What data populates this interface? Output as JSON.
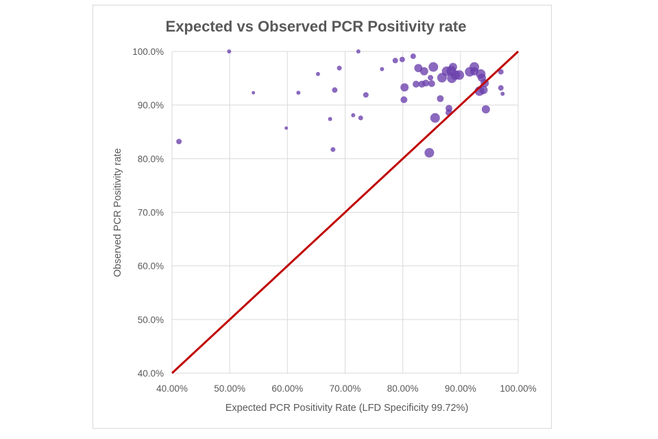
{
  "chart_data": {
    "type": "scatter",
    "title": "Expected vs Observed PCR Positivity rate",
    "xlabel": "Expected PCR Positivity Rate (LFD Specificity 99.72%)",
    "ylabel": "Observed PCR Positivity rate",
    "xlim": [
      40,
      100
    ],
    "ylim": [
      40,
      100
    ],
    "x_ticks": [
      40,
      50,
      60,
      70,
      80,
      90,
      100
    ],
    "x_tick_labels": [
      "40.00%",
      "50.00%",
      "60.00%",
      "70.00%",
      "80.00%",
      "90.00%",
      "100.00%"
    ],
    "y_ticks": [
      40,
      50,
      60,
      70,
      80,
      90,
      100
    ],
    "y_tick_labels": [
      "40.0%",
      "50.0%",
      "60.0%",
      "70.0%",
      "80.0%",
      "90.0%",
      "100.0%"
    ],
    "grid": true,
    "legend": "none",
    "marker_color": "#6a3fac",
    "reference_line": {
      "name": "y = x",
      "color": "#c00000",
      "from": [
        40,
        40
      ],
      "to": [
        100,
        100
      ]
    },
    "size_note": "bubble size relative (1-7)",
    "points": [
      {
        "x": 41.2,
        "y": 83.2,
        "size": 4
      },
      {
        "x": 49.9,
        "y": 100.0,
        "size": 3
      },
      {
        "x": 54.1,
        "y": 92.3,
        "size": 2.5
      },
      {
        "x": 59.8,
        "y": 85.7,
        "size": 2.5
      },
      {
        "x": 61.9,
        "y": 92.3,
        "size": 3
      },
      {
        "x": 65.3,
        "y": 95.8,
        "size": 3
      },
      {
        "x": 67.4,
        "y": 87.4,
        "size": 3
      },
      {
        "x": 68.2,
        "y": 92.8,
        "size": 4
      },
      {
        "x": 67.9,
        "y": 81.7,
        "size": 3.5
      },
      {
        "x": 69.0,
        "y": 96.9,
        "size": 3.5
      },
      {
        "x": 71.4,
        "y": 88.1,
        "size": 3
      },
      {
        "x": 72.7,
        "y": 87.6,
        "size": 3.5
      },
      {
        "x": 72.3,
        "y": 100.0,
        "size": 3
      },
      {
        "x": 73.6,
        "y": 91.9,
        "size": 4
      },
      {
        "x": 76.4,
        "y": 96.7,
        "size": 3
      },
      {
        "x": 78.7,
        "y": 98.3,
        "size": 4
      },
      {
        "x": 79.9,
        "y": 98.5,
        "size": 4
      },
      {
        "x": 80.3,
        "y": 93.3,
        "size": 6
      },
      {
        "x": 80.2,
        "y": 91.0,
        "size": 5
      },
      {
        "x": 81.8,
        "y": 99.1,
        "size": 4
      },
      {
        "x": 82.7,
        "y": 96.9,
        "size": 6
      },
      {
        "x": 83.7,
        "y": 96.3,
        "size": 6
      },
      {
        "x": 82.3,
        "y": 93.9,
        "size": 5
      },
      {
        "x": 83.3,
        "y": 93.9,
        "size": 5
      },
      {
        "x": 84.0,
        "y": 94.1,
        "size": 5
      },
      {
        "x": 84.8,
        "y": 95.1,
        "size": 4
      },
      {
        "x": 85.3,
        "y": 97.1,
        "size": 7
      },
      {
        "x": 85.0,
        "y": 94.0,
        "size": 5
      },
      {
        "x": 84.6,
        "y": 81.1,
        "size": 7
      },
      {
        "x": 86.5,
        "y": 91.2,
        "size": 5
      },
      {
        "x": 85.6,
        "y": 87.6,
        "size": 7
      },
      {
        "x": 86.8,
        "y": 95.1,
        "size": 7
      },
      {
        "x": 87.6,
        "y": 96.3,
        "size": 7
      },
      {
        "x": 88.4,
        "y": 96.4,
        "size": 7
      },
      {
        "x": 88.5,
        "y": 95.0,
        "size": 7
      },
      {
        "x": 88.0,
        "y": 89.4,
        "size": 5
      },
      {
        "x": 88.0,
        "y": 88.6,
        "size": 5
      },
      {
        "x": 88.7,
        "y": 97.1,
        "size": 6
      },
      {
        "x": 89.1,
        "y": 95.6,
        "size": 7
      },
      {
        "x": 89.8,
        "y": 95.6,
        "size": 7
      },
      {
        "x": 91.6,
        "y": 96.2,
        "size": 7
      },
      {
        "x": 92.4,
        "y": 97.1,
        "size": 7
      },
      {
        "x": 92.4,
        "y": 96.3,
        "size": 6
      },
      {
        "x": 93.5,
        "y": 95.8,
        "size": 7
      },
      {
        "x": 93.7,
        "y": 95.1,
        "size": 6
      },
      {
        "x": 94.2,
        "y": 94.1,
        "size": 6
      },
      {
        "x": 93.3,
        "y": 92.6,
        "size": 7
      },
      {
        "x": 94.0,
        "y": 92.8,
        "size": 6
      },
      {
        "x": 94.4,
        "y": 89.2,
        "size": 6
      },
      {
        "x": 97.0,
        "y": 96.2,
        "size": 4
      },
      {
        "x": 97.0,
        "y": 93.2,
        "size": 4
      },
      {
        "x": 97.3,
        "y": 92.1,
        "size": 3
      }
    ]
  }
}
